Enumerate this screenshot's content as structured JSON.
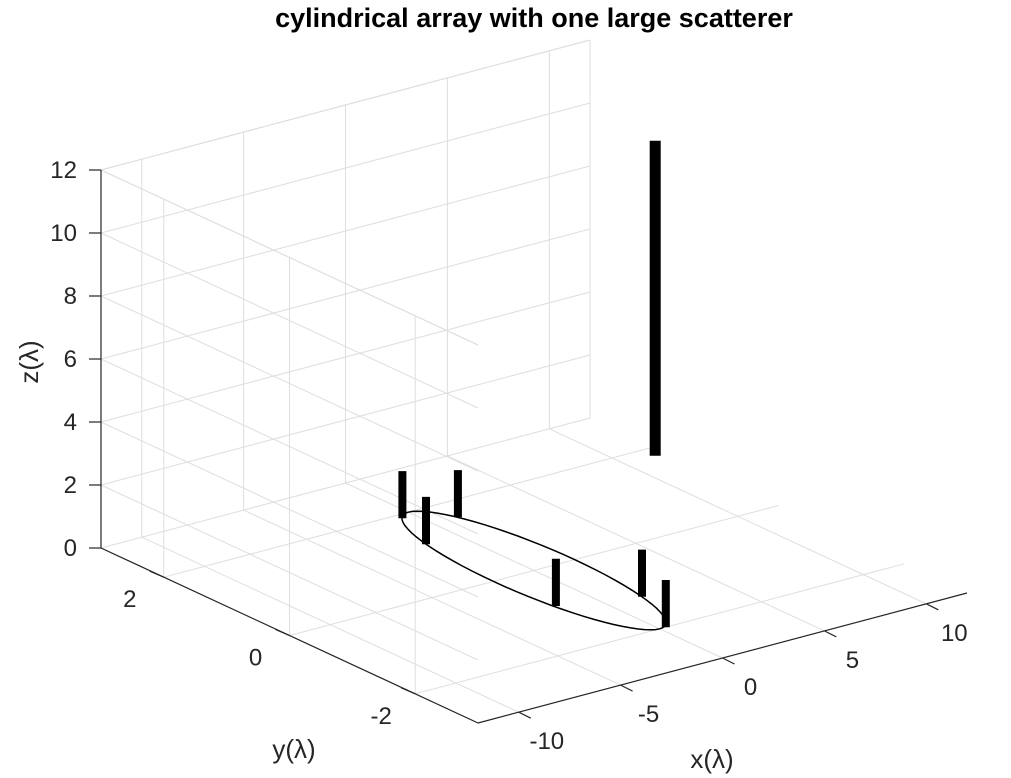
{
  "chart_data": {
    "type": "3d-line",
    "title": "cylindrical array with one large scatterer",
    "xlabel": "x(λ)",
    "ylabel": "y(λ)",
    "zlabel": "z(λ)",
    "xlim": [
      -12,
      12
    ],
    "ylim": [
      -3,
      3
    ],
    "zlim": [
      0,
      12
    ],
    "xticks": [
      -10,
      -5,
      0,
      5,
      10
    ],
    "yticks": [
      -2,
      0,
      2
    ],
    "zticks": [
      0,
      2,
      4,
      6,
      8,
      10,
      12
    ],
    "xtick_labels": [
      "-10",
      "-5",
      "0",
      "5",
      "10"
    ],
    "ytick_labels": [
      "-2",
      "0",
      "2"
    ],
    "ztick_labels": [
      "0",
      "2",
      "4",
      "6",
      "8",
      "10",
      "12"
    ],
    "grid": true,
    "array_ring": {
      "radius": 2,
      "z": 0
    },
    "antennas": [
      {
        "x": -1.6,
        "y": 1.2,
        "z0": 0,
        "z1": 1.5
      },
      {
        "x": -0.6,
        "y": 1.9,
        "z0": 0,
        "z1": 1.5
      },
      {
        "x": -1.7,
        "y": -0.9,
        "z0": 0,
        "z1": 1.5
      },
      {
        "x": 1.2,
        "y": 1.6,
        "z0": 0,
        "z1": 1.5
      },
      {
        "x": 0.3,
        "y": -2.0,
        "z0": 0,
        "z1": 1.5
      },
      {
        "x": 1.6,
        "y": -1.2,
        "z0": 0,
        "z1": 1.5
      }
    ],
    "scatterer": {
      "x": 11.5,
      "y": 1.8,
      "z0": 0,
      "z1": 10
    }
  }
}
